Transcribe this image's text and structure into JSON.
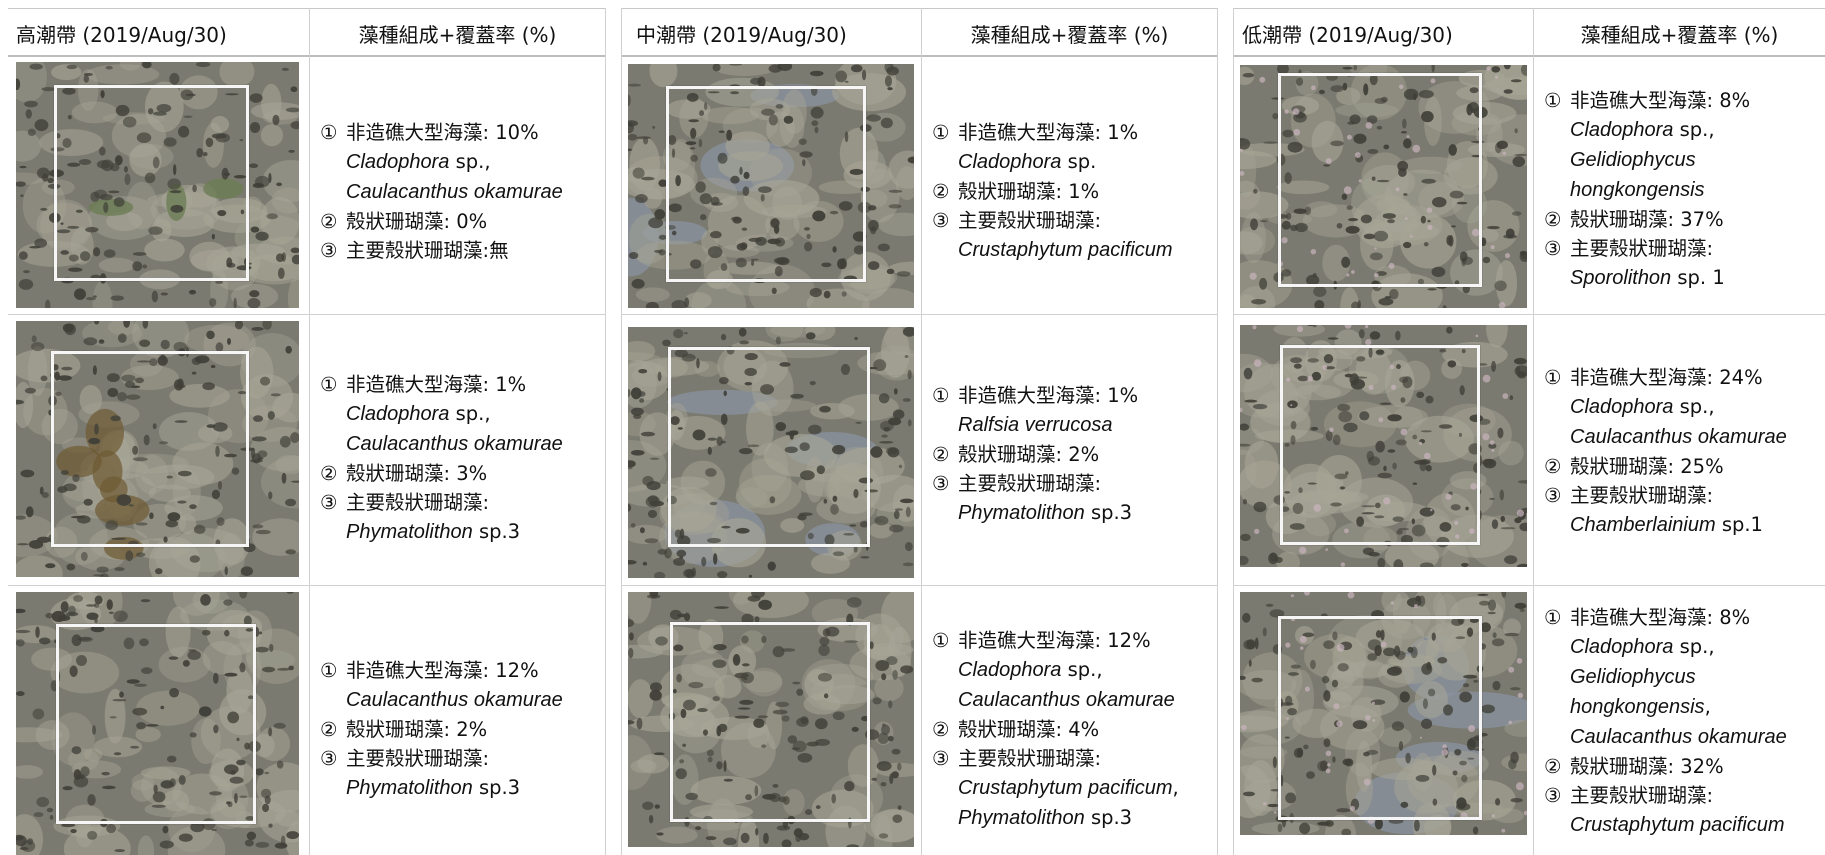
{
  "colors": {
    "rock_base": "#7b7a70",
    "rock_dark": "#3f3f38",
    "rock_light": "#a7a596",
    "water": "#8a93a0",
    "quadrat_frame": "#f6f6f6",
    "algae_green": "#6d7d55",
    "algae_brown": "#6e5a32",
    "coralline_pink": "#c9b3bd"
  },
  "panels": [
    {
      "title": "高潮帶 (2019/Aug/30)",
      "composition_header": "藻種組成+覆蓋率 (%)",
      "rows": [
        {
          "lines": [
            {
              "marker": "①",
              "text": "非造礁大型海藻: 10%",
              "italic": false
            },
            {
              "marker": "",
              "text": "Cladophora",
              "italic": true,
              "suffix": " sp.,"
            },
            {
              "marker": "",
              "text": "Caulacanthus okamurae",
              "italic": true,
              "suffix": ""
            },
            {
              "marker": "②",
              "text": "殼狀珊瑚藻: 0%",
              "italic": false
            },
            {
              "marker": "③",
              "text": "主要殼狀珊瑚藻:無",
              "italic": false
            }
          ]
        },
        {
          "lines": [
            {
              "marker": "①",
              "text": "非造礁大型海藻: 1%",
              "italic": false
            },
            {
              "marker": "",
              "text": "Cladophora",
              "italic": true,
              "suffix": " sp.,"
            },
            {
              "marker": "",
              "text": "Caulacanthus okamurae",
              "italic": true,
              "suffix": ""
            },
            {
              "marker": "②",
              "text": "殼狀珊瑚藻: 3%",
              "italic": false
            },
            {
              "marker": "③",
              "text": "主要殼狀珊瑚藻:",
              "italic": false
            },
            {
              "marker": "",
              "text": "Phymatolithon",
              "italic": true,
              "suffix": " sp.3"
            }
          ]
        },
        {
          "lines": [
            {
              "marker": "①",
              "text": "非造礁大型海藻: 12%",
              "italic": false
            },
            {
              "marker": "",
              "text": "Caulacanthus okamurae",
              "italic": true,
              "suffix": ""
            },
            {
              "marker": "②",
              "text": "殼狀珊瑚藻: 2%",
              "italic": false
            },
            {
              "marker": "③",
              "text": "主要殼狀珊瑚藻:",
              "italic": false
            },
            {
              "marker": "",
              "text": "Phymatolithon",
              "italic": true,
              "suffix": " sp.3"
            }
          ]
        }
      ]
    },
    {
      "title": "中潮帶 (2019/Aug/30)",
      "composition_header": "藻種組成+覆蓋率 (%)",
      "rows": [
        {
          "lines": [
            {
              "marker": "①",
              "text": "非造礁大型海藻: 1%",
              "italic": false
            },
            {
              "marker": "",
              "text": "Cladophora",
              "italic": true,
              "suffix": " sp."
            },
            {
              "marker": "②",
              "text": "殼狀珊瑚藻: 1%",
              "italic": false
            },
            {
              "marker": "③",
              "text": "主要殼狀珊瑚藻:",
              "italic": false
            },
            {
              "marker": "",
              "text": "Crustaphytum pacificum",
              "italic": true,
              "suffix": ""
            }
          ]
        },
        {
          "lines": [
            {
              "marker": "①",
              "text": "非造礁大型海藻: 1%",
              "italic": false
            },
            {
              "marker": "",
              "text": "Ralfsia verrucosa",
              "italic": true,
              "suffix": ""
            },
            {
              "marker": "②",
              "text": "殼狀珊瑚藻: 2%",
              "italic": false
            },
            {
              "marker": "③",
              "text": "主要殼狀珊瑚藻:",
              "italic": false
            },
            {
              "marker": "",
              "text": "Phymatolithon",
              "italic": true,
              "suffix": " sp.3"
            }
          ]
        },
        {
          "lines": [
            {
              "marker": "①",
              "text": "非造礁大型海藻: 12%",
              "italic": false
            },
            {
              "marker": "",
              "text": "Cladophora",
              "italic": true,
              "suffix": " sp.,"
            },
            {
              "marker": "",
              "text": "Caulacanthus okamurae",
              "italic": true,
              "suffix": ""
            },
            {
              "marker": "②",
              "text": "殼狀珊瑚藻: 4%",
              "italic": false
            },
            {
              "marker": "③",
              "text": "主要殼狀珊瑚藻:",
              "italic": false
            },
            {
              "marker": "",
              "text": "Crustaphytum pacificum",
              "italic": true,
              "suffix": ","
            },
            {
              "marker": "",
              "text": "Phymatolithon",
              "italic": true,
              "suffix": " sp.3"
            }
          ]
        }
      ]
    },
    {
      "title": "低潮帶 (2019/Aug/30)",
      "composition_header": "藻種組成+覆蓋率 (%)",
      "rows": [
        {
          "lines": [
            {
              "marker": "①",
              "text": "非造礁大型海藻: 8%",
              "italic": false
            },
            {
              "marker": "",
              "text": "Cladophora",
              "italic": true,
              "suffix": " sp.,"
            },
            {
              "marker": "",
              "text": "Gelidiophycus",
              "italic": true,
              "suffix": ""
            },
            {
              "marker": "",
              "text": "hongkongensis",
              "italic": true,
              "suffix": ""
            },
            {
              "marker": "②",
              "text": "殼狀珊瑚藻: 37%",
              "italic": false
            },
            {
              "marker": "③",
              "text": "主要殼狀珊瑚藻:",
              "italic": false
            },
            {
              "marker": "",
              "text": "Sporolithon",
              "italic": true,
              "suffix": " sp. 1"
            }
          ]
        },
        {
          "lines": [
            {
              "marker": "①",
              "text": "非造礁大型海藻: 24%",
              "italic": false
            },
            {
              "marker": "",
              "text": "Cladophora",
              "italic": true,
              "suffix": " sp.,"
            },
            {
              "marker": "",
              "text": "Caulacanthus okamurae",
              "italic": true,
              "suffix": ""
            },
            {
              "marker": "②",
              "text": "殼狀珊瑚藻: 25%",
              "italic": false
            },
            {
              "marker": "③",
              "text": "主要殼狀珊瑚藻:",
              "italic": false
            },
            {
              "marker": "",
              "text": "Chamberlainium",
              "italic": true,
              "suffix": " sp.1"
            }
          ]
        },
        {
          "lines": [
            {
              "marker": "①",
              "text": "非造礁大型海藻: 8%",
              "italic": false
            },
            {
              "marker": "",
              "text": "Cladophora",
              "italic": true,
              "suffix": " sp.,"
            },
            {
              "marker": "",
              "text": "Gelidiophycus",
              "italic": true,
              "suffix": ""
            },
            {
              "marker": "",
              "text": "hongkongensis",
              "italic": true,
              "suffix": ","
            },
            {
              "marker": "",
              "text": "Caulacanthus okamurae",
              "italic": true,
              "suffix": ""
            },
            {
              "marker": "②",
              "text": "殼狀珊瑚藻: 32%",
              "italic": false
            },
            {
              "marker": "③",
              "text": "主要殼狀珊瑚藻:",
              "italic": false
            },
            {
              "marker": "",
              "text": "Crustaphytum pacificum",
              "italic": true,
              "suffix": ""
            }
          ]
        }
      ]
    }
  ]
}
